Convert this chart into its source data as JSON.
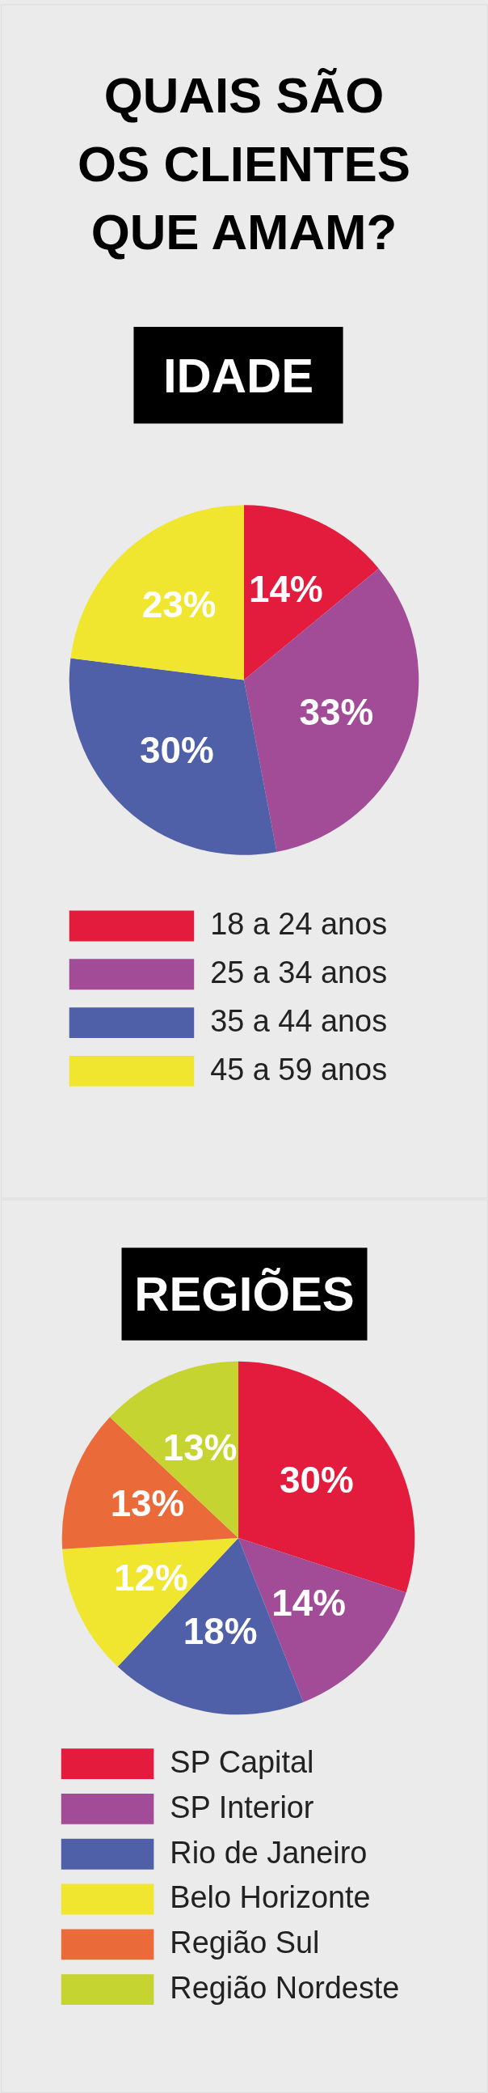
{
  "chart_data": [
    {
      "type": "pie",
      "title": "QUAIS SÃO OS CLIENTES QUE AMAM?",
      "subtitle": "IDADE",
      "categories": [
        "18 a 24 anos",
        "25 a 34 anos",
        "35 a 44 anos",
        "45 a 59 anos"
      ],
      "values": [
        14,
        33,
        30,
        23
      ],
      "value_labels": [
        "14%",
        "33%",
        "30%",
        "23%"
      ],
      "colors": [
        "#e31b3c",
        "#a24c98",
        "#5060a8",
        "#f0e630"
      ],
      "legend": "bottom"
    },
    {
      "type": "pie",
      "subtitle": "REGIÕES",
      "categories": [
        "SP Capital",
        "SP Interior",
        "Rio de Janeiro",
        "Belo Horizonte",
        "Região Sul",
        "Região Nordeste"
      ],
      "values": [
        30,
        14,
        18,
        12,
        13,
        13
      ],
      "value_labels": [
        "30%",
        "14%",
        "18%",
        "12%",
        "13%",
        "13%"
      ],
      "colors": [
        "#e31b3c",
        "#a24c98",
        "#5060a8",
        "#f0e630",
        "#eb6a3a",
        "#c5d430"
      ],
      "legend": "bottom"
    }
  ]
}
